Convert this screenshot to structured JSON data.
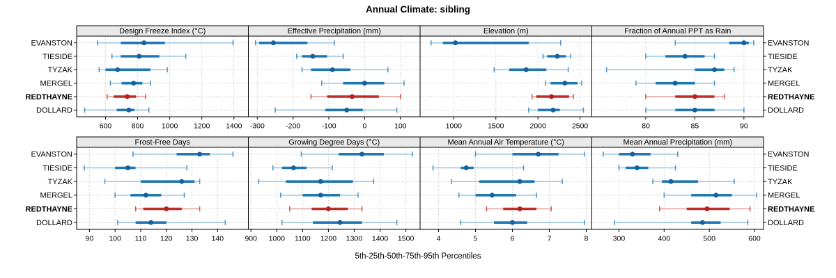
{
  "title": "Annual Climate: sibling",
  "caption": "5th-25th-50th-75th-95th Percentiles",
  "sites": [
    "EVANSTON",
    "TIESIDE",
    "TYZAK",
    "MERGEL",
    "REDTHAYNE",
    "DOLLARD"
  ],
  "highlighted_site": "REDTHAYNE",
  "colors": {
    "site_main": "#1F77B4",
    "site_light": "#9EC6E0",
    "site_dot": "#15619E",
    "highlight_main": "#C02B23",
    "highlight_light": "#DF9D99",
    "highlight_dot": "#B22222",
    "grid": "#C8C8C8",
    "header_bg": "#E9E9E9",
    "border": "#000000",
    "text": "#000000"
  },
  "chart_data": [
    {
      "type": "dot-interval",
      "title": "Design Freeze Index (°C)",
      "row": 0,
      "xlim": [
        420,
        1490
      ],
      "xticks": [
        600,
        800,
        1000,
        1200,
        1400
      ],
      "percentiles": [
        5,
        25,
        50,
        75,
        95
      ],
      "series": [
        {
          "name": "EVANSTON",
          "values": [
            550,
            695,
            840,
            970,
            1395
          ]
        },
        {
          "name": "TIESIDE",
          "values": [
            640,
            695,
            810,
            935,
            1100
          ]
        },
        {
          "name": "TYZAK",
          "values": [
            560,
            600,
            675,
            880,
            985
          ]
        },
        {
          "name": "MERGEL",
          "values": [
            630,
            700,
            775,
            830,
            880
          ]
        },
        {
          "name": "REDTHAYNE",
          "values": [
            610,
            650,
            735,
            790,
            850
          ]
        },
        {
          "name": "DOLLARD",
          "values": [
            470,
            670,
            745,
            780,
            870
          ]
        }
      ]
    },
    {
      "type": "dot-interval",
      "title": "Effective Precipitation (mm)",
      "row": 0,
      "xlim": [
        -325,
        155
      ],
      "xticks": [
        -300,
        -200,
        -100,
        0,
        100
      ],
      "percentiles": [
        5,
        25,
        50,
        75,
        95
      ],
      "series": [
        {
          "name": "EVANSTON",
          "values": [
            -305,
            -295,
            -255,
            -160,
            -85
          ]
        },
        {
          "name": "TIESIDE",
          "values": [
            -190,
            -175,
            -145,
            -105,
            -60
          ]
        },
        {
          "name": "TYZAK",
          "values": [
            -175,
            -150,
            -90,
            -40,
            65
          ]
        },
        {
          "name": "MERGEL",
          "values": [
            -120,
            -60,
            0,
            55,
            110
          ]
        },
        {
          "name": "REDTHAYNE",
          "values": [
            -150,
            -105,
            -35,
            40,
            100
          ]
        },
        {
          "name": "DOLLARD",
          "values": [
            -250,
            -110,
            -50,
            -5,
            90
          ]
        }
      ]
    },
    {
      "type": "dot-interval",
      "title": "Elevation (m)",
      "row": 0,
      "xlim": [
        600,
        2640
      ],
      "xticks": [
        1000,
        1500,
        2000,
        2500
      ],
      "percentiles": [
        5,
        25,
        50,
        75,
        95
      ],
      "series": [
        {
          "name": "EVANSTON",
          "values": [
            730,
            870,
            1020,
            1890,
            2270
          ]
        },
        {
          "name": "TIESIDE",
          "values": [
            2060,
            2110,
            2230,
            2330,
            2390
          ]
        },
        {
          "name": "TYZAK",
          "values": [
            1480,
            1660,
            1860,
            2100,
            2360
          ]
        },
        {
          "name": "MERGEL",
          "values": [
            2090,
            2150,
            2320,
            2470,
            2520
          ]
        },
        {
          "name": "REDTHAYNE",
          "values": [
            1930,
            1980,
            2160,
            2370,
            2420
          ]
        },
        {
          "name": "DOLLARD",
          "values": [
            1890,
            2000,
            2180,
            2260,
            2540
          ]
        }
      ]
    },
    {
      "type": "dot-interval",
      "title": "Fraction of Annual PPT as Rain",
      "row": 0,
      "xlim": [
        74.5,
        92
      ],
      "xticks": [
        80,
        85,
        90
      ],
      "percentiles": [
        5,
        25,
        50,
        75,
        95
      ],
      "series": [
        {
          "name": "EVANSTON",
          "values": [
            83,
            88.5,
            90,
            90.5,
            91
          ]
        },
        {
          "name": "TIESIDE",
          "values": [
            80,
            82,
            84,
            86,
            87
          ]
        },
        {
          "name": "TYZAK",
          "values": [
            76,
            85,
            87,
            88,
            89
          ]
        },
        {
          "name": "MERGEL",
          "values": [
            79,
            81,
            83,
            85,
            87
          ]
        },
        {
          "name": "REDTHAYNE",
          "values": [
            80,
            83,
            85,
            87,
            88
          ]
        },
        {
          "name": "DOLLARD",
          "values": [
            80,
            83,
            85,
            87,
            90
          ]
        }
      ]
    },
    {
      "type": "dot-interval",
      "title": "Frost-Free Days",
      "row": 1,
      "xlim": [
        85,
        152
      ],
      "xticks": [
        90,
        100,
        110,
        120,
        130,
        140
      ],
      "percentiles": [
        5,
        25,
        50,
        75,
        95
      ],
      "series": [
        {
          "name": "EVANSTON",
          "values": [
            107,
            124,
            133,
            137,
            146
          ]
        },
        {
          "name": "TIESIDE",
          "values": [
            88,
            100,
            105,
            108,
            128
          ]
        },
        {
          "name": "TYZAK",
          "values": [
            96,
            110,
            126,
            131,
            133
          ]
        },
        {
          "name": "MERGEL",
          "values": [
            100,
            106,
            112,
            118,
            127
          ]
        },
        {
          "name": "REDTHAYNE",
          "values": [
            108,
            111,
            120,
            126,
            133
          ]
        },
        {
          "name": "DOLLARD",
          "values": [
            101,
            108,
            114,
            120,
            143
          ]
        }
      ]
    },
    {
      "type": "dot-interval",
      "title": "Growing Degree Days (°C)",
      "row": 1,
      "xlim": [
        890,
        1555
      ],
      "xticks": [
        900,
        1000,
        1100,
        1200,
        1300,
        1400,
        1500
      ],
      "percentiles": [
        5,
        25,
        50,
        75,
        95
      ],
      "series": [
        {
          "name": "EVANSTON",
          "values": [
            1095,
            1240,
            1330,
            1415,
            1525
          ]
        },
        {
          "name": "TIESIDE",
          "values": [
            985,
            1020,
            1065,
            1115,
            1215
          ]
        },
        {
          "name": "TYZAK",
          "values": [
            930,
            1035,
            1170,
            1295,
            1375
          ]
        },
        {
          "name": "MERGEL",
          "values": [
            1015,
            1100,
            1170,
            1245,
            1315
          ]
        },
        {
          "name": "REDTHAYNE",
          "values": [
            1050,
            1135,
            1200,
            1275,
            1330
          ]
        },
        {
          "name": "DOLLARD",
          "values": [
            1020,
            1140,
            1245,
            1330,
            1465
          ]
        }
      ]
    },
    {
      "type": "dot-interval",
      "title": "Mean Annual Air Temperature (°C)",
      "row": 1,
      "xlim": [
        3.5,
        8.15
      ],
      "xticks": [
        4,
        5,
        6,
        7,
        8
      ],
      "percentiles": [
        5,
        25,
        50,
        75,
        95
      ],
      "series": [
        {
          "name": "EVANSTON",
          "values": [
            5.0,
            6.0,
            6.7,
            7.25,
            7.95
          ]
        },
        {
          "name": "TIESIDE",
          "values": [
            3.85,
            4.6,
            4.75,
            4.95,
            6.3
          ]
        },
        {
          "name": "TYZAK",
          "values": [
            4.35,
            5.1,
            6.2,
            6.6,
            7.35
          ]
        },
        {
          "name": "MERGEL",
          "values": [
            4.55,
            5.0,
            5.45,
            6.1,
            6.65
          ]
        },
        {
          "name": "REDTHAYNE",
          "values": [
            5.3,
            5.75,
            6.2,
            6.65,
            7.05
          ]
        },
        {
          "name": "DOLLARD",
          "values": [
            4.6,
            5.5,
            6.0,
            6.4,
            7.95
          ]
        }
      ]
    },
    {
      "type": "dot-interval",
      "title": "Mean Annual Precipitation (mm)",
      "row": 1,
      "xlim": [
        240,
        620
      ],
      "xticks": [
        300,
        400,
        500,
        600
      ],
      "percentiles": [
        5,
        25,
        50,
        75,
        95
      ],
      "series": [
        {
          "name": "EVANSTON",
          "values": [
            265,
            300,
            330,
            370,
            430
          ]
        },
        {
          "name": "TIESIDE",
          "values": [
            300,
            315,
            340,
            365,
            425
          ]
        },
        {
          "name": "TYZAK",
          "values": [
            375,
            395,
            415,
            475,
            555
          ]
        },
        {
          "name": "MERGEL",
          "values": [
            400,
            460,
            515,
            550,
            605
          ]
        },
        {
          "name": "REDTHAYNE",
          "values": [
            390,
            450,
            495,
            545,
            590
          ]
        },
        {
          "name": "DOLLARD",
          "values": [
            290,
            460,
            485,
            525,
            585
          ]
        }
      ]
    }
  ]
}
